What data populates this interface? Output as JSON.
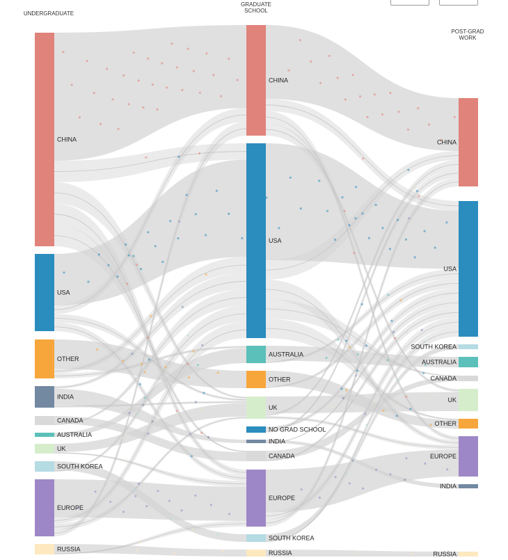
{
  "columns": [
    {
      "id": "undergrad",
      "title_lines": [
        "UNDERGRADUATE"
      ]
    },
    {
      "id": "grad",
      "title_lines": [
        "GRADUATE",
        "SCHOOL"
      ]
    },
    {
      "id": "post",
      "title_lines": [
        "POST-GRAD",
        "WORK"
      ]
    }
  ],
  "nodes": {
    "undergrad": [
      {
        "label": "CHINA",
        "color": "#e0837a"
      },
      {
        "label": "USA",
        "color": "#2b8cbe"
      },
      {
        "label": "OTHER",
        "color": "#f7a63c"
      },
      {
        "label": "INDIA",
        "color": "#7389a2"
      },
      {
        "label": "CANADA",
        "color": "#d9d9d9"
      },
      {
        "label": "AUSTRALIA",
        "color": "#5bc0b9"
      },
      {
        "label": "UK",
        "color": "#d6edcc"
      },
      {
        "label": "SOUTH KOREA",
        "color": "#b5dbe3"
      },
      {
        "label": "EUROPE",
        "color": "#9e87c7"
      },
      {
        "label": "RUSSIA",
        "color": "#fde8c0"
      }
    ],
    "grad": [
      {
        "label": "CHINA",
        "color": "#e0837a"
      },
      {
        "label": "USA",
        "color": "#2b8cbe"
      },
      {
        "label": "AUSTRALIA",
        "color": "#5bc0b9"
      },
      {
        "label": "OTHER",
        "color": "#f7a63c"
      },
      {
        "label": "UK",
        "color": "#d6edcc"
      },
      {
        "label": "NO GRAD SCHOOL",
        "color": "#2b8cbe"
      },
      {
        "label": "INDIA",
        "color": "#7389a2"
      },
      {
        "label": "CANADA",
        "color": "#d9d9d9"
      },
      {
        "label": "EUROPE",
        "color": "#9e87c7"
      },
      {
        "label": "SOUTH KOREA",
        "color": "#b5dbe3"
      },
      {
        "label": "RUSSIA",
        "color": "#fde8c0"
      }
    ],
    "post": [
      {
        "label": "CHINA",
        "color": "#e0837a"
      },
      {
        "label": "USA",
        "color": "#2b8cbe"
      },
      {
        "label": "SOUTH KOREA",
        "color": "#b5dbe3"
      },
      {
        "label": "AUSTRALIA",
        "color": "#5bc0b9"
      },
      {
        "label": "CANADA",
        "color": "#d9d9d9"
      },
      {
        "label": "UK",
        "color": "#d6edcc"
      },
      {
        "label": "OTHER",
        "color": "#f7a63c"
      },
      {
        "label": "EUROPE",
        "color": "#9e87c7"
      },
      {
        "label": "INDIA",
        "color": "#7389a2"
      },
      {
        "label": "RUSSIA",
        "color": "#fde8c0"
      }
    ]
  },
  "flows": [
    {
      "from": "undergrad.CHINA",
      "to": "grad.CHINA"
    },
    {
      "from": "undergrad.CHINA",
      "to": "grad.USA"
    },
    {
      "from": "undergrad.CHINA",
      "to": "grad.UK"
    },
    {
      "from": "undergrad.CHINA",
      "to": "grad.EUROPE"
    },
    {
      "from": "undergrad.CHINA",
      "to": "grad.CANADA"
    },
    {
      "from": "undergrad.USA",
      "to": "grad.USA"
    },
    {
      "from": "undergrad.USA",
      "to": "grad.CHINA"
    },
    {
      "from": "undergrad.USA",
      "to": "grad.UK"
    },
    {
      "from": "undergrad.USA",
      "to": "grad.EUROPE"
    },
    {
      "from": "undergrad.OTHER",
      "to": "grad.OTHER"
    },
    {
      "from": "undergrad.OTHER",
      "to": "grad.USA"
    },
    {
      "from": "undergrad.OTHER",
      "to": "grad.AUSTRALIA"
    },
    {
      "from": "undergrad.INDIA",
      "to": "grad.USA"
    },
    {
      "from": "undergrad.INDIA",
      "to": "grad.INDIA"
    },
    {
      "from": "undergrad.INDIA",
      "to": "grad.UK"
    },
    {
      "from": "undergrad.CANADA",
      "to": "grad.CANADA"
    },
    {
      "from": "undergrad.CANADA",
      "to": "grad.USA"
    },
    {
      "from": "undergrad.AUSTRALIA",
      "to": "grad.AUSTRALIA"
    },
    {
      "from": "undergrad.UK",
      "to": "grad.UK"
    },
    {
      "from": "undergrad.UK",
      "to": "grad.EUROPE"
    },
    {
      "from": "undergrad.SOUTH KOREA",
      "to": "grad.SOUTH KOREA"
    },
    {
      "from": "undergrad.SOUTH KOREA",
      "to": "grad.USA"
    },
    {
      "from": "undergrad.EUROPE",
      "to": "grad.EUROPE"
    },
    {
      "from": "undergrad.EUROPE",
      "to": "grad.USA"
    },
    {
      "from": "undergrad.EUROPE",
      "to": "grad.UK"
    },
    {
      "from": "undergrad.EUROPE",
      "to": "grad.CHINA"
    },
    {
      "from": "undergrad.RUSSIA",
      "to": "grad.RUSSIA"
    },
    {
      "from": "undergrad.RUSSIA",
      "to": "grad.EUROPE"
    },
    {
      "from": "grad.CHINA",
      "to": "post.CHINA"
    },
    {
      "from": "grad.CHINA",
      "to": "post.USA"
    },
    {
      "from": "grad.CHINA",
      "to": "post.EUROPE"
    },
    {
      "from": "grad.CHINA",
      "to": "post.UK"
    },
    {
      "from": "grad.USA",
      "to": "post.USA"
    },
    {
      "from": "grad.USA",
      "to": "post.CHINA"
    },
    {
      "from": "grad.USA",
      "to": "post.EUROPE"
    },
    {
      "from": "grad.USA",
      "to": "post.CANADA"
    },
    {
      "from": "grad.USA",
      "to": "post.OTHER"
    },
    {
      "from": "grad.AUSTRALIA",
      "to": "post.AUSTRALIA"
    },
    {
      "from": "grad.AUSTRALIA",
      "to": "post.USA"
    },
    {
      "from": "grad.OTHER",
      "to": "post.OTHER"
    },
    {
      "from": "grad.OTHER",
      "to": "post.USA"
    },
    {
      "from": "grad.UK",
      "to": "post.UK"
    },
    {
      "from": "grad.UK",
      "to": "post.CHINA"
    },
    {
      "from": "grad.UK",
      "to": "post.EUROPE"
    },
    {
      "from": "grad.NO GRAD SCHOOL",
      "to": "post.USA"
    },
    {
      "from": "grad.NO GRAD SCHOOL",
      "to": "post.CHINA"
    },
    {
      "from": "grad.INDIA",
      "to": "post.INDIA"
    },
    {
      "from": "grad.INDIA",
      "to": "post.USA"
    },
    {
      "from": "grad.CANADA",
      "to": "post.CANADA"
    },
    {
      "from": "grad.CANADA",
      "to": "post.USA"
    },
    {
      "from": "grad.EUROPE",
      "to": "post.EUROPE"
    },
    {
      "from": "grad.EUROPE",
      "to": "post.USA"
    },
    {
      "from": "grad.EUROPE",
      "to": "post.CHINA"
    },
    {
      "from": "grad.SOUTH KOREA",
      "to": "post.SOUTH KOREA"
    },
    {
      "from": "grad.SOUTH KOREA",
      "to": "post.USA"
    },
    {
      "from": "grad.RUSSIA",
      "to": "post.RUSSIA"
    }
  ]
}
